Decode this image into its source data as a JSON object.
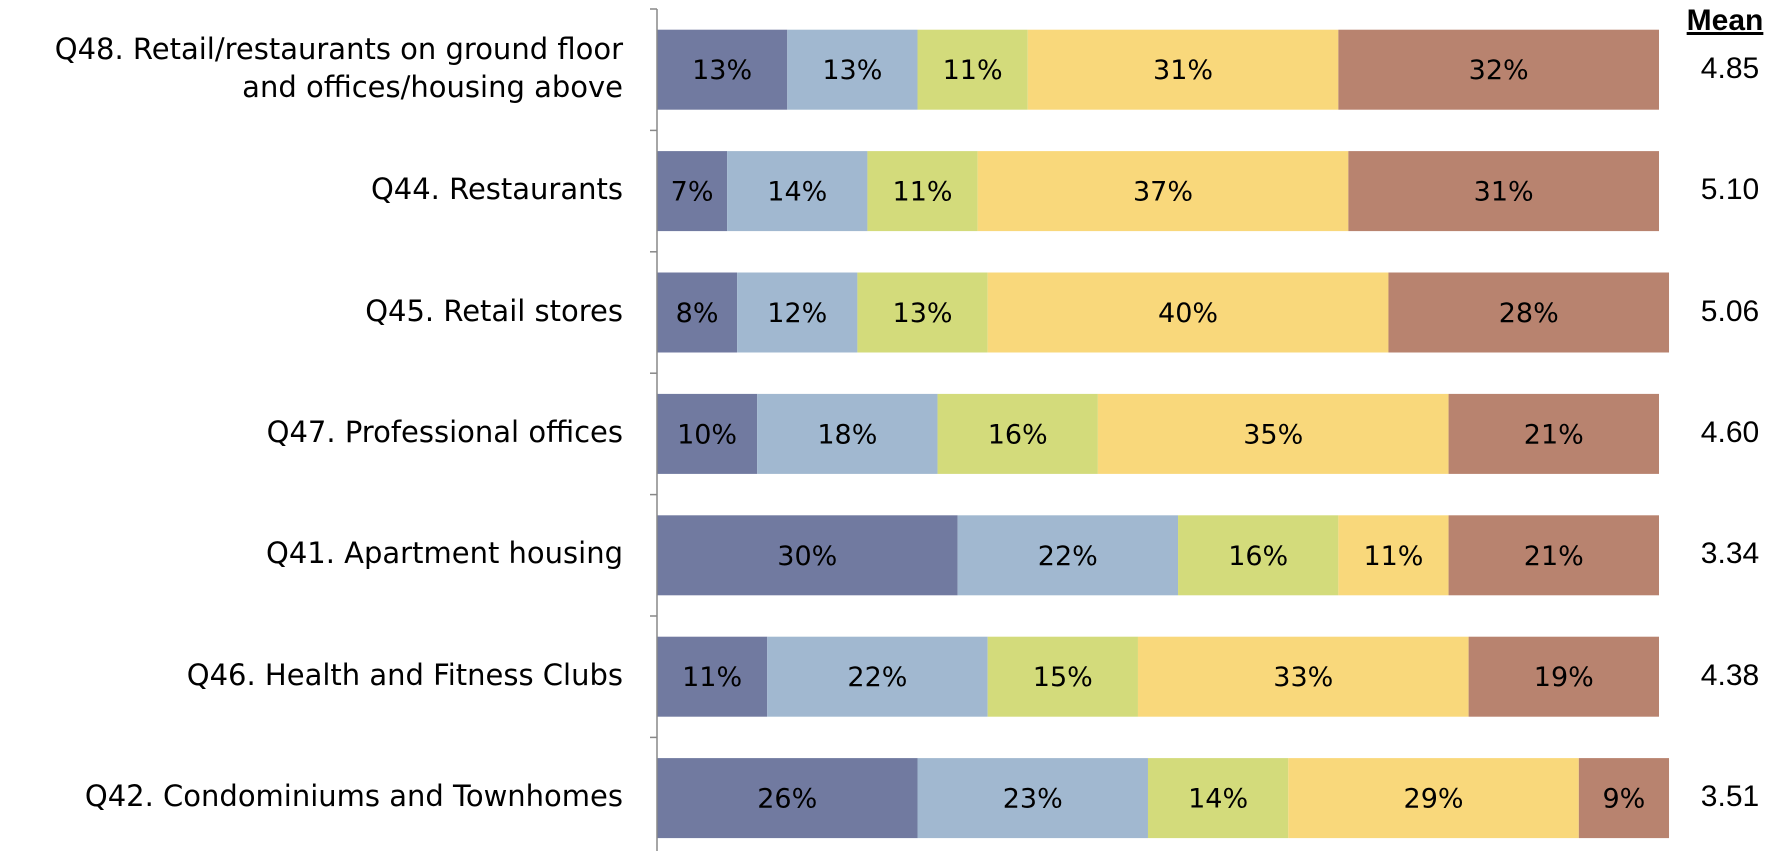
{
  "chart_data": {
    "type": "stacked_barh",
    "categories": [
      "Q48.  Retail/restaurants on ground floor\nand offices/housing above",
      "Q44.  Restaurants",
      "Q45. Retail stores",
      "Q47. Professional offices",
      "Q41. Apartment housing",
      "Q46.  Health and Fitness Clubs",
      "Q42. Condominiums and Townhomes"
    ],
    "series": [
      {
        "color": "#717aa0",
        "values": [
          13,
          7,
          8,
          10,
          30,
          11,
          26
        ],
        "value_labels": [
          "13%",
          "7%",
          "8%",
          "10%",
          "30%",
          "11%",
          "26%"
        ]
      },
      {
        "color": "#a1b8d0",
        "values": [
          13,
          14,
          12,
          18,
          22,
          22,
          23
        ],
        "value_labels": [
          "13%",
          "14%",
          "12%",
          "18%",
          "22%",
          "22%",
          "23%"
        ]
      },
      {
        "color": "#d3db7b",
        "values": [
          11,
          11,
          13,
          16,
          16,
          15,
          14
        ],
        "value_labels": [
          "11%",
          "11%",
          "13%",
          "16%",
          "16%",
          "15%",
          "14%"
        ]
      },
      {
        "color": "#f9d87b",
        "values": [
          31,
          37,
          40,
          35,
          11,
          33,
          29
        ],
        "value_labels": [
          "31%",
          "37%",
          "40%",
          "35%",
          "11%",
          "33%",
          "29%"
        ]
      },
      {
        "color": "#b8836f",
        "values": [
          32,
          31,
          28,
          21,
          21,
          19,
          9
        ],
        "value_labels": [
          "32%",
          "31%",
          "28%",
          "21%",
          "21%",
          "19%",
          "9%"
        ]
      }
    ],
    "xlim": [
      0,
      100
    ],
    "mean_title": "Mean",
    "means": [
      "4.85",
      "5.10",
      "5.06",
      "4.60",
      "3.34",
      "4.38",
      "3.51"
    ]
  }
}
